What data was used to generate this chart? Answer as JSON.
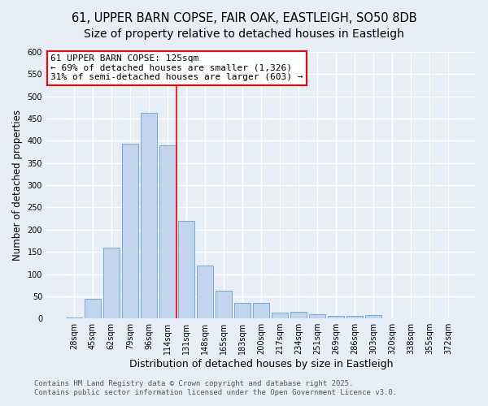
{
  "title_line1": "61, UPPER BARN COPSE, FAIR OAK, EASTLEIGH, SO50 8DB",
  "title_line2": "Size of property relative to detached houses in Eastleigh",
  "xlabel": "Distribution of detached houses by size in Eastleigh",
  "ylabel": "Number of detached properties",
  "categories": [
    "28sqm",
    "45sqm",
    "62sqm",
    "79sqm",
    "96sqm",
    "114sqm",
    "131sqm",
    "148sqm",
    "165sqm",
    "183sqm",
    "200sqm",
    "217sqm",
    "234sqm",
    "251sqm",
    "269sqm",
    "286sqm",
    "303sqm",
    "320sqm",
    "338sqm",
    "355sqm",
    "372sqm"
  ],
  "values": [
    3,
    44,
    160,
    393,
    463,
    390,
    220,
    120,
    63,
    35,
    35,
    14,
    15,
    10,
    5,
    5,
    8,
    1,
    1,
    1,
    1
  ],
  "bar_color": "#c2d4ee",
  "bar_edge_color": "#7aaad0",
  "background_color": "#e8eef8",
  "grid_color": "#ffffff",
  "vline_color": "red",
  "vline_position": 5.5,
  "annotation_text": "61 UPPER BARN COPSE: 125sqm\n← 69% of detached houses are smaller (1,326)\n31% of semi-detached houses are larger (603) →",
  "annotation_box_facecolor": "white",
  "annotation_box_edgecolor": "red",
  "ylim": [
    0,
    600
  ],
  "yticks": [
    0,
    50,
    100,
    150,
    200,
    250,
    300,
    350,
    400,
    450,
    500,
    550,
    600
  ],
  "footer_text": "Contains HM Land Registry data © Crown copyright and database right 2025.\nContains public sector information licensed under the Open Government Licence v3.0.",
  "title_fontsize": 10.5,
  "ylabel_fontsize": 8.5,
  "xlabel_fontsize": 9,
  "tick_fontsize": 7,
  "annotation_fontsize": 8,
  "footer_fontsize": 6.5
}
